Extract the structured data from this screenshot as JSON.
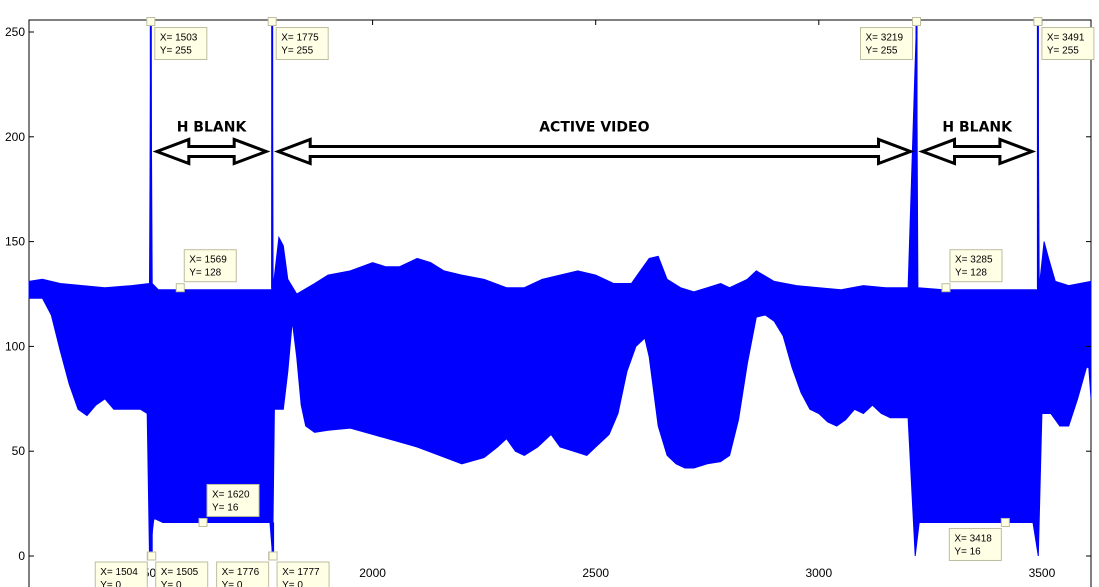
{
  "chart_data": {
    "type": "line",
    "title": "",
    "xlabel": "",
    "ylabel": "",
    "xlim": [
      1230,
      3610
    ],
    "ylim": [
      -3,
      258
    ],
    "y_ticks": [
      0,
      50,
      100,
      150,
      200,
      250
    ],
    "x_ticks": [
      1500,
      2000,
      2500,
      3000,
      3500
    ],
    "grid": false,
    "series_color": "#0000ff",
    "series": [
      {
        "upper_envelope": [
          [
            1230,
            131
          ],
          [
            1260,
            132
          ],
          [
            1300,
            130
          ],
          [
            1350,
            129
          ],
          [
            1400,
            128
          ],
          [
            1460,
            129
          ],
          [
            1500,
            130
          ],
          [
            1503,
            255
          ],
          [
            1506,
            130
          ],
          [
            1520,
            127
          ],
          [
            1774,
            127
          ],
          [
            1775,
            255
          ],
          [
            1777,
            128
          ],
          [
            1790,
            152
          ],
          [
            1800,
            148
          ],
          [
            1810,
            132
          ],
          [
            1830,
            125
          ],
          [
            1870,
            130
          ],
          [
            1900,
            134
          ],
          [
            1950,
            136
          ],
          [
            2000,
            140
          ],
          [
            2030,
            138
          ],
          [
            2060,
            138
          ],
          [
            2100,
            142
          ],
          [
            2130,
            140
          ],
          [
            2160,
            136
          ],
          [
            2200,
            134
          ],
          [
            2250,
            132
          ],
          [
            2300,
            128
          ],
          [
            2340,
            128
          ],
          [
            2380,
            132
          ],
          [
            2420,
            134
          ],
          [
            2460,
            136
          ],
          [
            2500,
            134
          ],
          [
            2540,
            130
          ],
          [
            2580,
            130
          ],
          [
            2600,
            136
          ],
          [
            2620,
            142
          ],
          [
            2640,
            143
          ],
          [
            2660,
            132
          ],
          [
            2690,
            128
          ],
          [
            2720,
            126
          ],
          [
            2750,
            128
          ],
          [
            2780,
            130
          ],
          [
            2800,
            128
          ],
          [
            2840,
            132
          ],
          [
            2860,
            136
          ],
          [
            2900,
            131
          ],
          [
            2950,
            129
          ],
          [
            3000,
            128
          ],
          [
            3050,
            127
          ],
          [
            3100,
            129
          ],
          [
            3150,
            128
          ],
          [
            3200,
            128
          ],
          [
            3219,
            255
          ],
          [
            3222,
            128
          ],
          [
            3280,
            127
          ],
          [
            3490,
            127
          ],
          [
            3491,
            255
          ],
          [
            3494,
            128
          ],
          [
            3505,
            150
          ],
          [
            3515,
            142
          ],
          [
            3530,
            131
          ],
          [
            3560,
            129
          ],
          [
            3610,
            131
          ]
        ],
        "lower_envelope": [
          [
            1230,
            123
          ],
          [
            1260,
            123
          ],
          [
            1280,
            115
          ],
          [
            1300,
            98
          ],
          [
            1320,
            82
          ],
          [
            1340,
            70
          ],
          [
            1360,
            67
          ],
          [
            1380,
            72
          ],
          [
            1400,
            75
          ],
          [
            1420,
            70
          ],
          [
            1440,
            70
          ],
          [
            1460,
            70
          ],
          [
            1480,
            70
          ],
          [
            1495,
            68
          ],
          [
            1500,
            0
          ],
          [
            1510,
            18
          ],
          [
            1530,
            16
          ],
          [
            1770,
            16
          ],
          [
            1776,
            0
          ],
          [
            1780,
            70
          ],
          [
            1800,
            70
          ],
          [
            1810,
            88
          ],
          [
            1820,
            112
          ],
          [
            1830,
            95
          ],
          [
            1840,
            72
          ],
          [
            1850,
            62
          ],
          [
            1870,
            59
          ],
          [
            1900,
            60
          ],
          [
            1950,
            61
          ],
          [
            2000,
            58
          ],
          [
            2050,
            55
          ],
          [
            2100,
            52
          ],
          [
            2150,
            48
          ],
          [
            2200,
            44
          ],
          [
            2250,
            47
          ],
          [
            2280,
            52
          ],
          [
            2300,
            56
          ],
          [
            2320,
            50
          ],
          [
            2340,
            48
          ],
          [
            2370,
            52
          ],
          [
            2400,
            58
          ],
          [
            2420,
            52
          ],
          [
            2450,
            50
          ],
          [
            2480,
            48
          ],
          [
            2500,
            52
          ],
          [
            2530,
            58
          ],
          [
            2550,
            68
          ],
          [
            2570,
            88
          ],
          [
            2590,
            100
          ],
          [
            2610,
            104
          ],
          [
            2620,
            95
          ],
          [
            2640,
            62
          ],
          [
            2660,
            48
          ],
          [
            2680,
            44
          ],
          [
            2700,
            42
          ],
          [
            2720,
            42
          ],
          [
            2750,
            44
          ],
          [
            2780,
            45
          ],
          [
            2800,
            48
          ],
          [
            2820,
            65
          ],
          [
            2840,
            92
          ],
          [
            2860,
            114
          ],
          [
            2880,
            115
          ],
          [
            2900,
            112
          ],
          [
            2920,
            105
          ],
          [
            2940,
            90
          ],
          [
            2960,
            78
          ],
          [
            2980,
            70
          ],
          [
            3000,
            68
          ],
          [
            3020,
            64
          ],
          [
            3040,
            62
          ],
          [
            3060,
            65
          ],
          [
            3080,
            70
          ],
          [
            3100,
            68
          ],
          [
            3120,
            72
          ],
          [
            3140,
            68
          ],
          [
            3160,
            66
          ],
          [
            3180,
            66
          ],
          [
            3200,
            66
          ],
          [
            3216,
            0
          ],
          [
            3225,
            16
          ],
          [
            3230,
            16
          ],
          [
            3480,
            16
          ],
          [
            3492,
            0
          ],
          [
            3500,
            68
          ],
          [
            3520,
            68
          ],
          [
            3540,
            62
          ],
          [
            3560,
            62
          ],
          [
            3580,
            75
          ],
          [
            3600,
            90
          ],
          [
            3605,
            90
          ],
          [
            3610,
            75
          ]
        ]
      }
    ],
    "datatips": [
      {
        "x": 1503,
        "y": 255,
        "label_x": "X= 1503",
        "label_y": "Y= 255",
        "dir": "br"
      },
      {
        "x": 1775,
        "y": 255,
        "label_x": "X= 1775",
        "label_y": "Y= 255",
        "dir": "br"
      },
      {
        "x": 3219,
        "y": 255,
        "label_x": "X= 3219",
        "label_y": "Y= 255",
        "dir": "bl"
      },
      {
        "x": 3491,
        "y": 255,
        "label_x": "X= 3491",
        "label_y": "Y= 255",
        "dir": "br"
      },
      {
        "x": 1569,
        "y": 128,
        "label_x": "X= 1569",
        "label_y": "Y= 128",
        "dir": "tr"
      },
      {
        "x": 3285,
        "y": 128,
        "label_x": "X= 3285",
        "label_y": "Y= 128",
        "dir": "tr"
      },
      {
        "x": 1620,
        "y": 16,
        "label_x": "X= 1620",
        "label_y": "Y= 16",
        "dir": "tr"
      },
      {
        "x": 3418,
        "y": 16,
        "label_x": "X= 3418",
        "label_y": "Y= 16",
        "dir": "bl"
      },
      {
        "x": 1504,
        "y": 0,
        "label_x": "X= 1504",
        "label_y": "Y= 0",
        "dir": "bl"
      },
      {
        "x": 1505,
        "y": 0,
        "label_x": "X= 1505",
        "label_y": "Y= 0",
        "dir": "br"
      },
      {
        "x": 1776,
        "y": 0,
        "label_x": "X= 1776",
        "label_y": "Y= 0",
        "dir": "bl"
      },
      {
        "x": 1777,
        "y": 0,
        "label_x": "X= 1777",
        "label_y": "Y= 0",
        "dir": "br"
      }
    ],
    "annotations": [
      {
        "text": "H BLANK",
        "x_start": 1503,
        "x_end": 1775,
        "y": 193
      },
      {
        "text": "ACTIVE VIDEO",
        "x_start": 1775,
        "x_end": 3219,
        "y": 193
      },
      {
        "text": "H BLANK",
        "x_start": 3219,
        "x_end": 3491,
        "y": 193
      }
    ]
  }
}
